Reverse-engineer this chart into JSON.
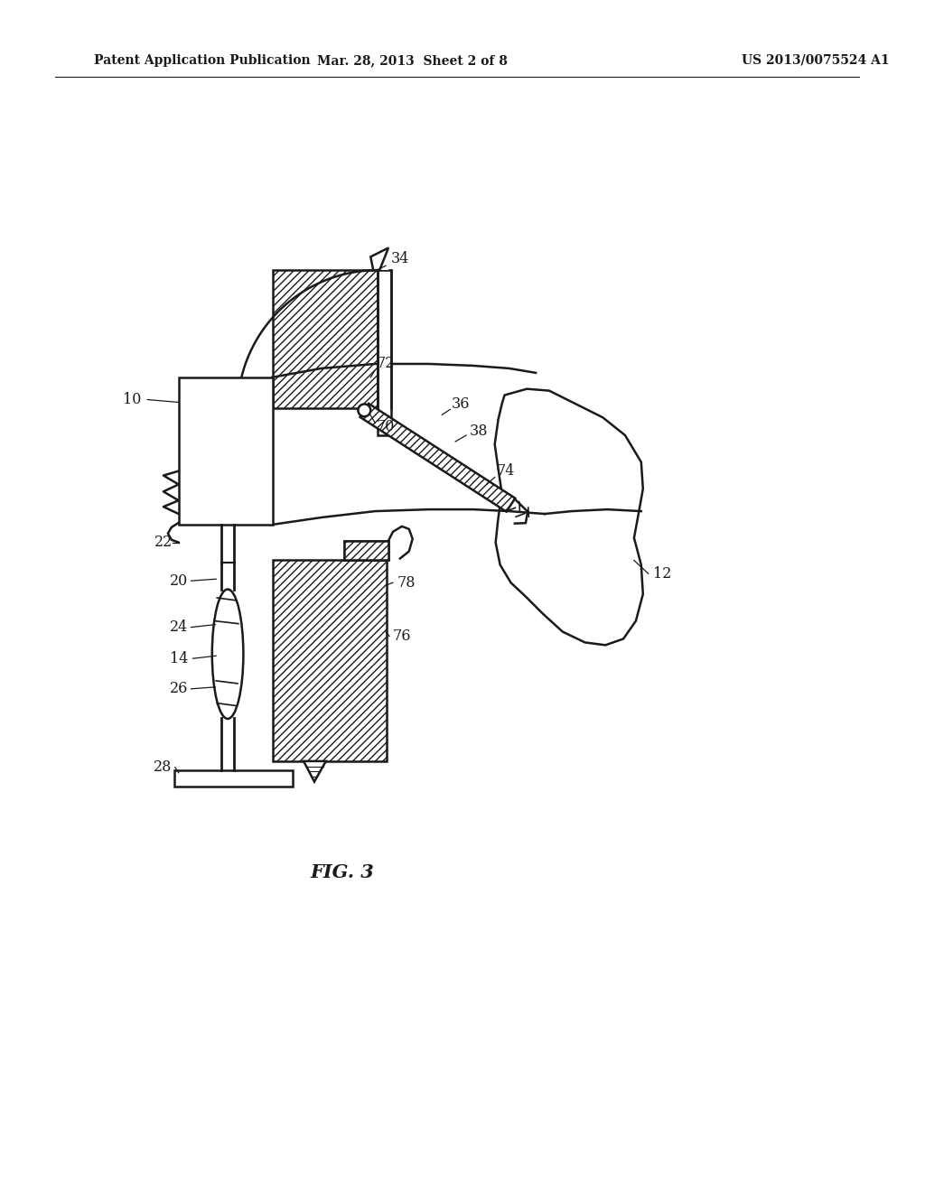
{
  "bg_color": "#ffffff",
  "line_color": "#1a1a1a",
  "header_left": "Patent Application Publication",
  "header_mid": "Mar. 28, 2013  Sheet 2 of 8",
  "header_right": "US 2013/0075524 A1",
  "fig_label": "FIG. 3",
  "lw": 1.8
}
